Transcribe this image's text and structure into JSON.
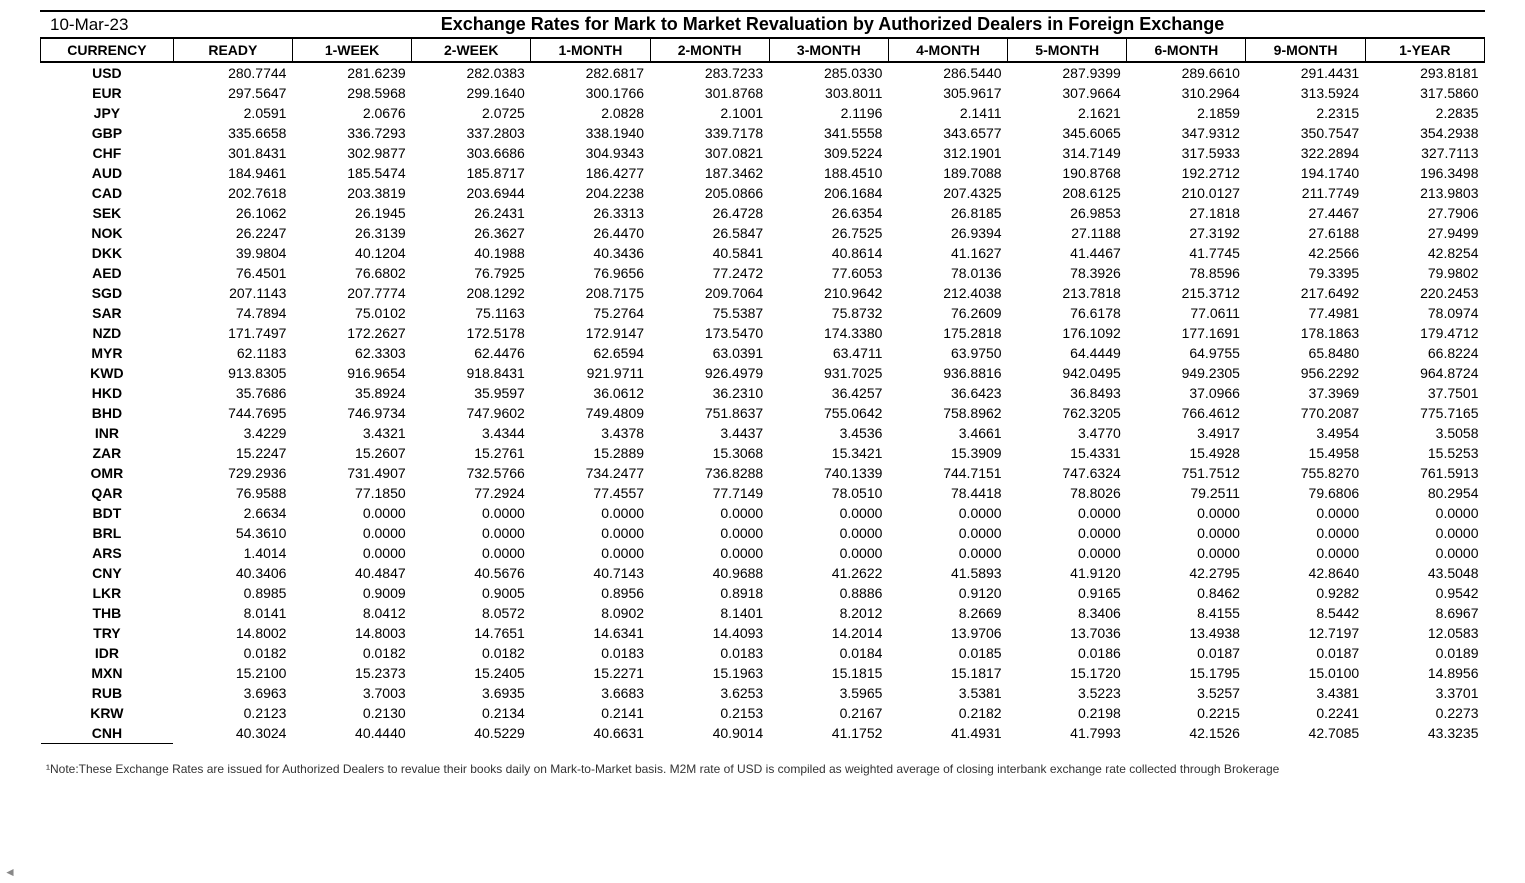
{
  "date": "10-Mar-23",
  "title": "Exchange Rates for Mark to Market Revaluation by Authorized Dealers in Foreign Exchange",
  "columns": [
    "CURRENCY",
    "READY",
    "1-WEEK",
    "2-WEEK",
    "1-MONTH",
    "2-MONTH",
    "3-MONTH",
    "4-MONTH",
    "5-MONTH",
    "6-MONTH",
    "9-MONTH",
    "1-YEAR"
  ],
  "footnote": "¹Note:These Exchange Rates are issued for Authorized Dealers to revalue their books daily on Mark-to-Market basis. M2M rate of USD is compiled as weighted average of closing interbank exchange rate collected through Brokerage",
  "rows": [
    {
      "c": "USD",
      "v": [
        "280.7744",
        "281.6239",
        "282.0383",
        "282.6817",
        "283.7233",
        "285.0330",
        "286.5440",
        "287.9399",
        "289.6610",
        "291.4431",
        "293.8181"
      ]
    },
    {
      "c": "EUR",
      "v": [
        "297.5647",
        "298.5968",
        "299.1640",
        "300.1766",
        "301.8768",
        "303.8011",
        "305.9617",
        "307.9664",
        "310.2964",
        "313.5924",
        "317.5860"
      ]
    },
    {
      "c": "JPY",
      "v": [
        "2.0591",
        "2.0676",
        "2.0725",
        "2.0828",
        "2.1001",
        "2.1196",
        "2.1411",
        "2.1621",
        "2.1859",
        "2.2315",
        "2.2835"
      ]
    },
    {
      "c": "GBP",
      "v": [
        "335.6658",
        "336.7293",
        "337.2803",
        "338.1940",
        "339.7178",
        "341.5558",
        "343.6577",
        "345.6065",
        "347.9312",
        "350.7547",
        "354.2938"
      ]
    },
    {
      "c": "CHF",
      "v": [
        "301.8431",
        "302.9877",
        "303.6686",
        "304.9343",
        "307.0821",
        "309.5224",
        "312.1901",
        "314.7149",
        "317.5933",
        "322.2894",
        "327.7113"
      ]
    },
    {
      "c": "AUD",
      "v": [
        "184.9461",
        "185.5474",
        "185.8717",
        "186.4277",
        "187.3462",
        "188.4510",
        "189.7088",
        "190.8768",
        "192.2712",
        "194.1740",
        "196.3498"
      ]
    },
    {
      "c": "CAD",
      "v": [
        "202.7618",
        "203.3819",
        "203.6944",
        "204.2238",
        "205.0866",
        "206.1684",
        "207.4325",
        "208.6125",
        "210.0127",
        "211.7749",
        "213.9803"
      ]
    },
    {
      "c": "SEK",
      "v": [
        "26.1062",
        "26.1945",
        "26.2431",
        "26.3313",
        "26.4728",
        "26.6354",
        "26.8185",
        "26.9853",
        "27.1818",
        "27.4467",
        "27.7906"
      ]
    },
    {
      "c": "NOK",
      "v": [
        "26.2247",
        "26.3139",
        "26.3627",
        "26.4470",
        "26.5847",
        "26.7525",
        "26.9394",
        "27.1188",
        "27.3192",
        "27.6188",
        "27.9499"
      ]
    },
    {
      "c": "DKK",
      "v": [
        "39.9804",
        "40.1204",
        "40.1988",
        "40.3436",
        "40.5841",
        "40.8614",
        "41.1627",
        "41.4467",
        "41.7745",
        "42.2566",
        "42.8254"
      ]
    },
    {
      "c": "AED",
      "v": [
        "76.4501",
        "76.6802",
        "76.7925",
        "76.9656",
        "77.2472",
        "77.6053",
        "78.0136",
        "78.3926",
        "78.8596",
        "79.3395",
        "79.9802"
      ]
    },
    {
      "c": "SGD",
      "v": [
        "207.1143",
        "207.7774",
        "208.1292",
        "208.7175",
        "209.7064",
        "210.9642",
        "212.4038",
        "213.7818",
        "215.3712",
        "217.6492",
        "220.2453"
      ]
    },
    {
      "c": "SAR",
      "v": [
        "74.7894",
        "75.0102",
        "75.1163",
        "75.2764",
        "75.5387",
        "75.8732",
        "76.2609",
        "76.6178",
        "77.0611",
        "77.4981",
        "78.0974"
      ]
    },
    {
      "c": "NZD",
      "v": [
        "171.7497",
        "172.2627",
        "172.5178",
        "172.9147",
        "173.5470",
        "174.3380",
        "175.2818",
        "176.1092",
        "177.1691",
        "178.1863",
        "179.4712"
      ]
    },
    {
      "c": "MYR",
      "v": [
        "62.1183",
        "62.3303",
        "62.4476",
        "62.6594",
        "63.0391",
        "63.4711",
        "63.9750",
        "64.4449",
        "64.9755",
        "65.8480",
        "66.8224"
      ]
    },
    {
      "c": "KWD",
      "v": [
        "913.8305",
        "916.9654",
        "918.8431",
        "921.9711",
        "926.4979",
        "931.7025",
        "936.8816",
        "942.0495",
        "949.2305",
        "956.2292",
        "964.8724"
      ]
    },
    {
      "c": "HKD",
      "v": [
        "35.7686",
        "35.8924",
        "35.9597",
        "36.0612",
        "36.2310",
        "36.4257",
        "36.6423",
        "36.8493",
        "37.0966",
        "37.3969",
        "37.7501"
      ]
    },
    {
      "c": "BHD",
      "v": [
        "744.7695",
        "746.9734",
        "747.9602",
        "749.4809",
        "751.8637",
        "755.0642",
        "758.8962",
        "762.3205",
        "766.4612",
        "770.2087",
        "775.7165"
      ]
    },
    {
      "c": "INR",
      "v": [
        "3.4229",
        "3.4321",
        "3.4344",
        "3.4378",
        "3.4437",
        "3.4536",
        "3.4661",
        "3.4770",
        "3.4917",
        "3.4954",
        "3.5058"
      ]
    },
    {
      "c": "ZAR",
      "v": [
        "15.2247",
        "15.2607",
        "15.2761",
        "15.2889",
        "15.3068",
        "15.3421",
        "15.3909",
        "15.4331",
        "15.4928",
        "15.4958",
        "15.5253"
      ]
    },
    {
      "c": "OMR",
      "v": [
        "729.2936",
        "731.4907",
        "732.5766",
        "734.2477",
        "736.8288",
        "740.1339",
        "744.7151",
        "747.6324",
        "751.7512",
        "755.8270",
        "761.5913"
      ]
    },
    {
      "c": "QAR",
      "v": [
        "76.9588",
        "77.1850",
        "77.2924",
        "77.4557",
        "77.7149",
        "78.0510",
        "78.4418",
        "78.8026",
        "79.2511",
        "79.6806",
        "80.2954"
      ]
    },
    {
      "c": "BDT",
      "v": [
        "2.6634",
        "0.0000",
        "0.0000",
        "0.0000",
        "0.0000",
        "0.0000",
        "0.0000",
        "0.0000",
        "0.0000",
        "0.0000",
        "0.0000"
      ]
    },
    {
      "c": "BRL",
      "v": [
        "54.3610",
        "0.0000",
        "0.0000",
        "0.0000",
        "0.0000",
        "0.0000",
        "0.0000",
        "0.0000",
        "0.0000",
        "0.0000",
        "0.0000"
      ]
    },
    {
      "c": "ARS",
      "v": [
        "1.4014",
        "0.0000",
        "0.0000",
        "0.0000",
        "0.0000",
        "0.0000",
        "0.0000",
        "0.0000",
        "0.0000",
        "0.0000",
        "0.0000"
      ]
    },
    {
      "c": "CNY",
      "v": [
        "40.3406",
        "40.4847",
        "40.5676",
        "40.7143",
        "40.9688",
        "41.2622",
        "41.5893",
        "41.9120",
        "42.2795",
        "42.8640",
        "43.5048"
      ]
    },
    {
      "c": "LKR",
      "v": [
        "0.8985",
        "0.9009",
        "0.9005",
        "0.8956",
        "0.8918",
        "0.8886",
        "0.9120",
        "0.9165",
        "0.8462",
        "0.9282",
        "0.9542"
      ]
    },
    {
      "c": "THB",
      "v": [
        "8.0141",
        "8.0412",
        "8.0572",
        "8.0902",
        "8.1401",
        "8.2012",
        "8.2669",
        "8.3406",
        "8.4155",
        "8.5442",
        "8.6967"
      ]
    },
    {
      "c": "TRY",
      "v": [
        "14.8002",
        "14.8003",
        "14.7651",
        "14.6341",
        "14.4093",
        "14.2014",
        "13.9706",
        "13.7036",
        "13.4938",
        "12.7197",
        "12.0583"
      ]
    },
    {
      "c": "IDR",
      "v": [
        "0.0182",
        "0.0182",
        "0.0182",
        "0.0183",
        "0.0183",
        "0.0184",
        "0.0185",
        "0.0186",
        "0.0187",
        "0.0187",
        "0.0189"
      ]
    },
    {
      "c": "MXN",
      "v": [
        "15.2100",
        "15.2373",
        "15.2405",
        "15.2271",
        "15.1963",
        "15.1815",
        "15.1817",
        "15.1720",
        "15.1795",
        "15.0100",
        "14.8956"
      ]
    },
    {
      "c": "RUB",
      "v": [
        "3.6963",
        "3.7003",
        "3.6935",
        "3.6683",
        "3.6253",
        "3.5965",
        "3.5381",
        "3.5223",
        "3.5257",
        "3.4381",
        "3.3701"
      ]
    },
    {
      "c": "KRW",
      "v": [
        "0.2123",
        "0.2130",
        "0.2134",
        "0.2141",
        "0.2153",
        "0.2167",
        "0.2182",
        "0.2198",
        "0.2215",
        "0.2241",
        "0.2273"
      ]
    },
    {
      "c": "CNH",
      "v": [
        "40.3024",
        "40.4440",
        "40.5229",
        "40.6631",
        "40.9014",
        "41.1752",
        "41.4931",
        "41.7993",
        "42.1526",
        "42.7085",
        "43.3235"
      ]
    }
  ],
  "style": {
    "background": "#ffffff",
    "text_color": "#000000",
    "border_color": "#000000",
    "footnote_color": "#333333",
    "title_fontsize": 18,
    "date_fontsize": 17,
    "header_fontsize": 14,
    "cell_fontsize": 14,
    "footnote_fontsize": 12
  }
}
